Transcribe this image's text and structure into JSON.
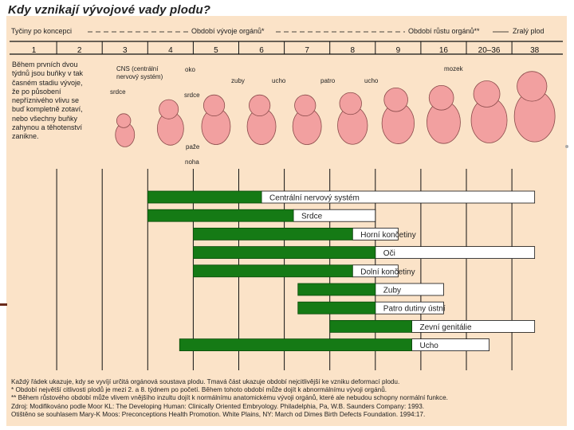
{
  "chart_data": {
    "type": "bar",
    "title": "Kdy vznikají vývojové vady plodu?",
    "header": {
      "embryo": "Tyčiny po koncepci",
      "organ_dev": "Období vývoje orgánů*",
      "organ_growth": "Období růstu orgánů**",
      "mature": "Zralý plod"
    },
    "weeks": [
      "1",
      "2",
      "3",
      "4",
      "5",
      "6",
      "7",
      "8",
      "9",
      "16",
      "20–36",
      "38"
    ],
    "intro": [
      "Během prvních dvou",
      "týdnů jsou buňky v tak",
      "časném stadiu vývoje,",
      "že po působení",
      "nepříznivého vlivu se",
      "buď kompletně zotaví,",
      "nebo všechny buňky",
      "zahynou a těhotenství",
      "zanikne.",
      "",
      ""
    ],
    "organ_labels": {
      "cns": "CNS (centrální",
      "cns2": "nervový systém)",
      "eye": "oko",
      "heart": "srdce",
      "arm": "paže",
      "leg": "noha",
      "teeth": "zuby",
      "ear": "ucho",
      "palate": "patro",
      "brain": "mozek"
    },
    "series": [
      {
        "name": "Centrální nervový systém",
        "sensitive_from": 3,
        "sensitive_to": 5.5,
        "less_to": 11.5
      },
      {
        "name": "Srdce",
        "sensitive_from": 3,
        "sensitive_to": 6.2,
        "less_to": 8
      },
      {
        "name": "Horní končetiny",
        "sensitive_from": 4,
        "sensitive_to": 7.5,
        "less_to": 8.5
      },
      {
        "name": "Oči",
        "sensitive_from": 4,
        "sensitive_to": 8,
        "less_to": 11.5
      },
      {
        "name": "Dolní končetiny",
        "sensitive_from": 4,
        "sensitive_to": 7.5,
        "less_to": 8.5
      },
      {
        "name": "Zuby",
        "sensitive_from": 6.3,
        "sensitive_to": 8,
        "less_to": 9.5
      },
      {
        "name": "Patro dutiny ústní",
        "sensitive_from": 6.3,
        "sensitive_to": 8,
        "less_to": 9.5
      },
      {
        "name": "Zevní genitálie",
        "sensitive_from": 7,
        "sensitive_to": 8.8,
        "less_to": 11.5
      },
      {
        "name": "Ucho",
        "sensitive_from": 3.7,
        "sensitive_to": 8.8,
        "less_to": 10.5
      }
    ],
    "colors": {
      "sensitive": "#157a15",
      "less_sensitive": "#ffffff",
      "grid": "#111111",
      "embryo": "#f2a0a0"
    },
    "footnotes": [
      "Každý řádek ukazuje, kdy se vyvíjí určitá orgánová soustava plodu. Tmavá část ukazuje období nejcitlivější ke vzniku deformací plodu.",
      "* Období největší citlivosti plodů je mezi 2. a 8. týdnem po početí. Během tohoto období může dojít k abnormálnímu vývoji orgánů.",
      "** Během růstového období může vlivem vnějšího inzultu dojít k normálnímu anatomickému vývoji orgánů, které ale nebudou schopny normální funkce.",
      "Zdroj: Modifikováno podle  Moor KL: The Developing Human: Clinically Oriented Embryology. Philadelphia, Pa, W.B. Saunders Company: 1993.",
      "Otištěno se souhlasem Mary-K Moos: Preconceptions Health Promotion. White Plains, NY: March od Dimes Birth Defects Foundation. 1994:17."
    ]
  }
}
